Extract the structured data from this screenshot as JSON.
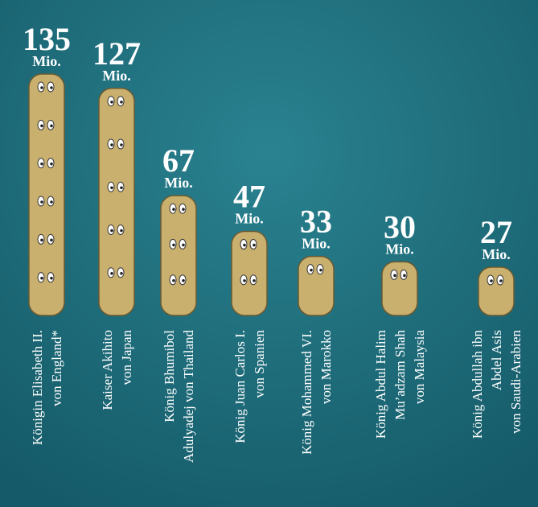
{
  "chart_data": {
    "type": "pictogram",
    "unit": "Mio.",
    "color": "#c9b06f",
    "categories": [
      [
        "Königin Elisabeth II.",
        "von England*"
      ],
      [
        "Kaiser Akihito",
        "von Japan"
      ],
      [
        "König Bhumibol",
        "Adulyadej von Thailand"
      ],
      [
        "König Juan Carlos I.",
        "von Spanien"
      ],
      [
        "König Mohammed VI.",
        "von Marokko"
      ],
      [
        "König Abdul Halim",
        "Mu’adzam Shah",
        "von Malaysia"
      ],
      [
        "König Abdullah ibn",
        "Abdel Asis",
        "von Saudi-Arabien"
      ]
    ],
    "values": [
      135,
      127,
      67,
      47,
      33,
      30,
      27
    ]
  }
}
